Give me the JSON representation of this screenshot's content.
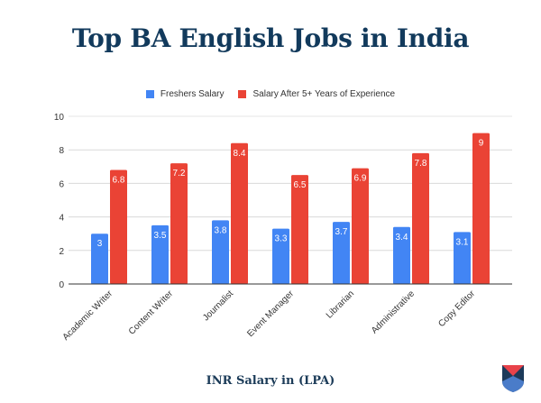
{
  "header": {
    "title": "Top BA English Jobs in India"
  },
  "footer": {
    "axis_caption": "INR Salary in (LPA)"
  },
  "logo": {
    "icon": "shield-logo-icon"
  },
  "colors": {
    "freshers": "#4285f4",
    "experienced": "#ea4335",
    "title": "#123a5c",
    "gridline": "#d9d9d9",
    "axis": "#333333"
  },
  "legend": {
    "items": [
      {
        "label": "Freshers Salary",
        "color": "#4285f4"
      },
      {
        "label": "Salary After 5+ Years of Experience",
        "color": "#ea4335"
      }
    ]
  },
  "chart_data": {
    "type": "bar",
    "title": "Top BA English Jobs in India",
    "xlabel": "",
    "ylabel": "",
    "caption": "INR Salary in (LPA)",
    "categories": [
      "Academic Writer",
      "Content Writer",
      "Journalist",
      "Event Manager",
      "Librarian",
      "Administrative",
      "Copy Editor"
    ],
    "series": [
      {
        "name": "Freshers Salary",
        "color": "#4285f4",
        "values": [
          3,
          3.5,
          3.8,
          3.3,
          3.7,
          3.4,
          3.1
        ]
      },
      {
        "name": "Salary After 5+ Years of Experience",
        "color": "#ea4335",
        "values": [
          6.8,
          7.2,
          8.4,
          6.5,
          6.9,
          7.8,
          9
        ]
      }
    ],
    "ylim": [
      0,
      10
    ],
    "yticks": [
      0,
      2,
      4,
      6,
      8,
      10
    ],
    "grid": true,
    "legend_position": "top",
    "data_labels": true,
    "x_tick_rotation": -45
  }
}
